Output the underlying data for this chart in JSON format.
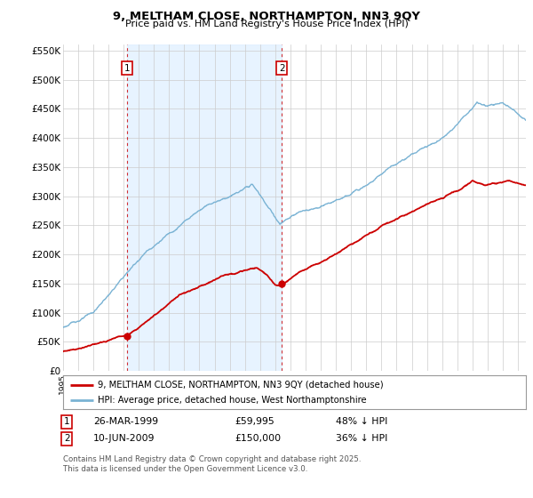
{
  "title": "9, MELTHAM CLOSE, NORTHAMPTON, NN3 9QY",
  "subtitle": "Price paid vs. HM Land Registry's House Price Index (HPI)",
  "ylim": [
    0,
    560000
  ],
  "yticks": [
    0,
    50000,
    100000,
    150000,
    200000,
    250000,
    300000,
    350000,
    400000,
    450000,
    500000,
    550000
  ],
  "ytick_labels": [
    "£0",
    "£50K",
    "£100K",
    "£150K",
    "£200K",
    "£250K",
    "£300K",
    "£350K",
    "£400K",
    "£450K",
    "£500K",
    "£550K"
  ],
  "hpi_color": "#7ab3d4",
  "price_color": "#cc0000",
  "marker_color": "#cc0000",
  "grid_color": "#cccccc",
  "shade_color": "#ddeeff",
  "background_color": "#ffffff",
  "legend_line1": "9, MELTHAM CLOSE, NORTHAMPTON, NN3 9QY (detached house)",
  "legend_line2": "HPI: Average price, detached house, West Northamptonshire",
  "annotation1_date": "26-MAR-1999",
  "annotation1_price": "£59,995",
  "annotation1_hpi": "48% ↓ HPI",
  "annotation2_date": "10-JUN-2009",
  "annotation2_price": "£150,000",
  "annotation2_hpi": "36% ↓ HPI",
  "footer": "Contains HM Land Registry data © Crown copyright and database right 2025.\nThis data is licensed under the Open Government Licence v3.0.",
  "sale1_x": 1999.23,
  "sale1_y": 59995,
  "sale2_x": 2009.44,
  "sale2_y": 150000,
  "vline1_x": 1999.23,
  "vline2_x": 2009.44,
  "xmin": 1995.0,
  "xmax": 2025.5
}
